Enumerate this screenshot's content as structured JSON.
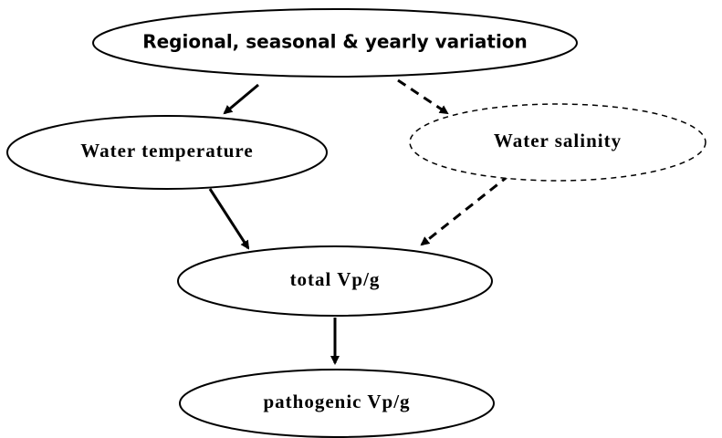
{
  "nodes": [
    {
      "label": "Regional, seasonal & yearly variation"
    },
    {
      "label": "Water temperature"
    },
    {
      "label": "Water salinity"
    },
    {
      "label": "total Vp/g"
    },
    {
      "label": "pathogenic Vp/g"
    }
  ]
}
